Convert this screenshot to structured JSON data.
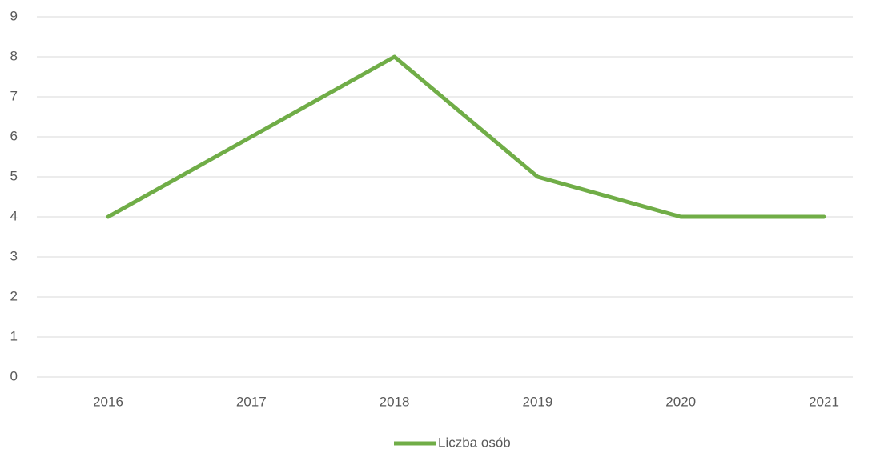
{
  "chart_data": {
    "type": "line",
    "categories": [
      "2016",
      "2017",
      "2018",
      "2019",
      "2020",
      "2021"
    ],
    "series": [
      {
        "name": "Liczba osób",
        "color": "#70ad47",
        "values": [
          4,
          6,
          8,
          5,
          4,
          4
        ]
      }
    ],
    "ylim": [
      0,
      9
    ],
    "yticks": [
      0,
      1,
      2,
      3,
      4,
      5,
      6,
      7,
      8,
      9
    ],
    "grid": true,
    "legend": "bottom"
  }
}
